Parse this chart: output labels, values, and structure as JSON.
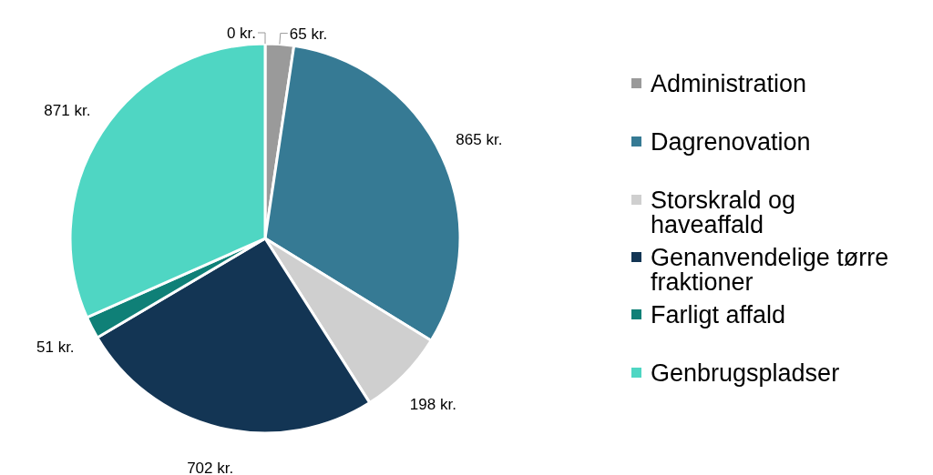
{
  "chart_data": {
    "type": "pie",
    "categories": [
      null,
      "Administration",
      "Dagrenovation",
      "Storskrald og haveaffald",
      "Genanvendelige tørre fraktioner",
      "Farligt affald",
      "Genbrugspladser"
    ],
    "values": [
      0,
      65,
      865,
      198,
      702,
      51,
      871
    ],
    "colors": [
      "#9a9a9a",
      "#9a9a9a",
      "#367a94",
      "#cfcfcf",
      "#133554",
      "#0f8077",
      "#4fd6c3"
    ],
    "value_labels": [
      "0 kr.",
      "65 kr.",
      "865 kr.",
      "198 kr.",
      "702 kr.",
      "51 kr.",
      "871 kr."
    ],
    "legend": "right"
  }
}
